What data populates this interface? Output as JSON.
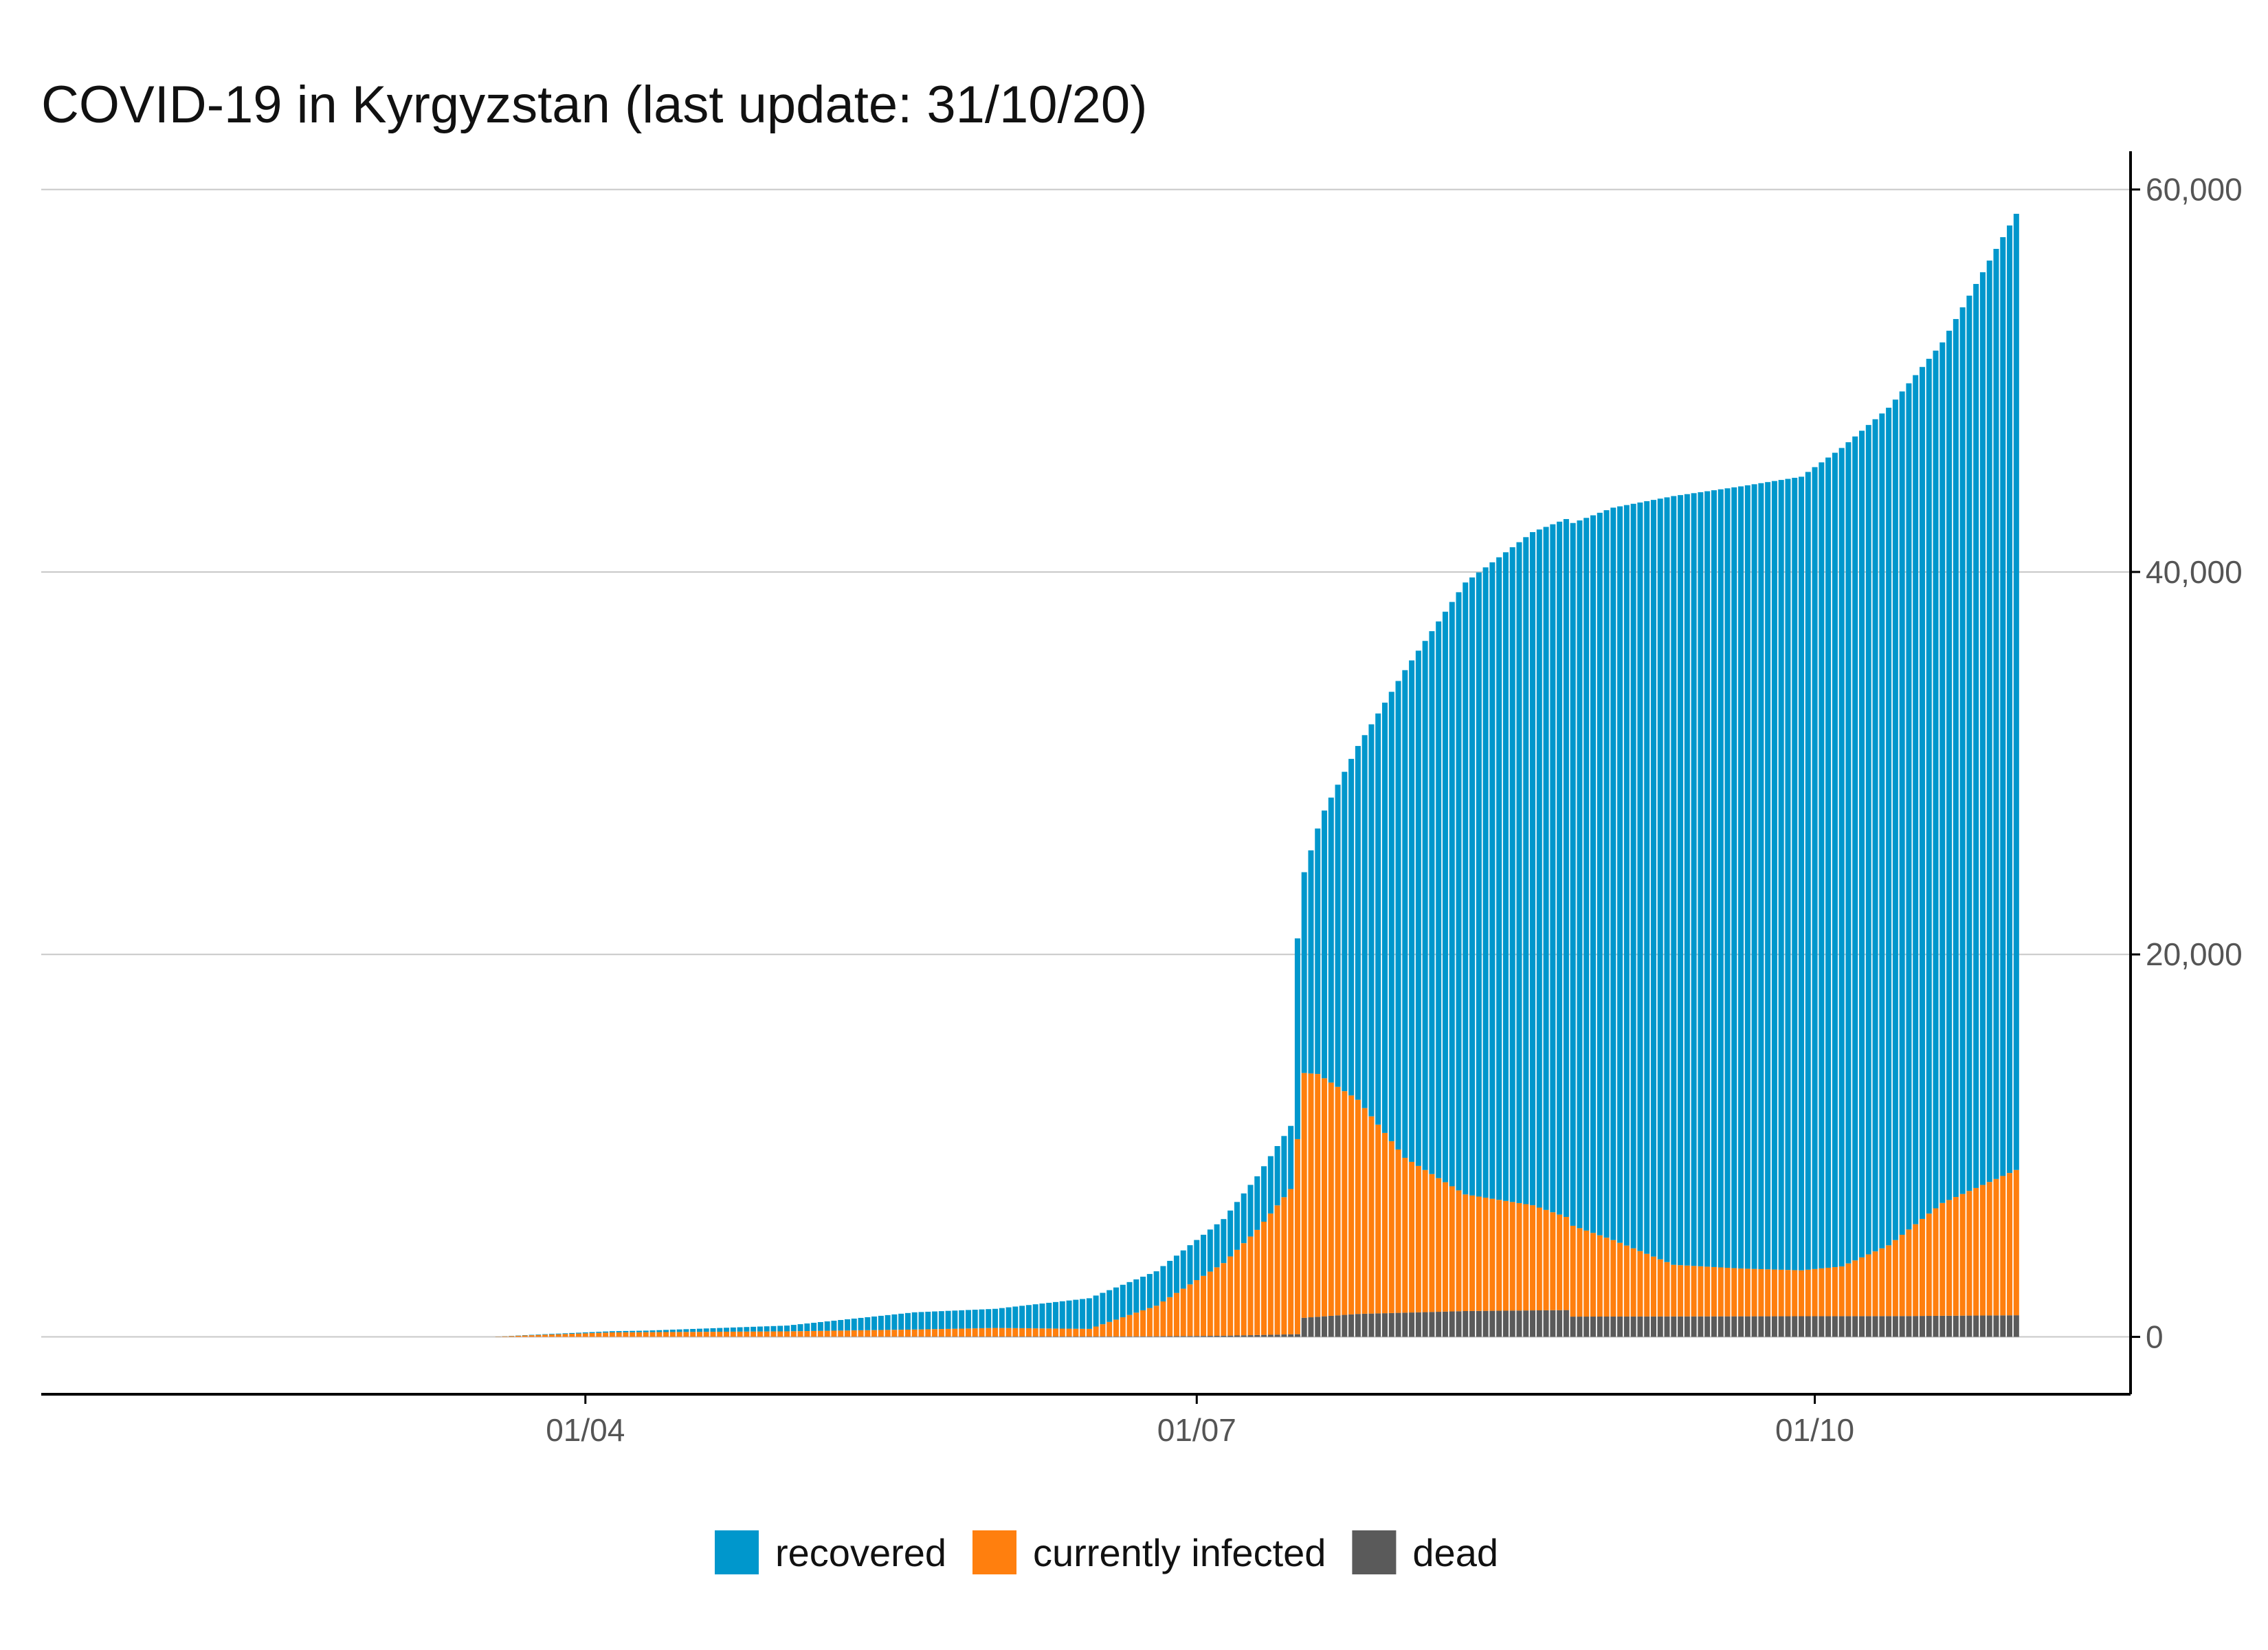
{
  "chart_data": {
    "type": "bar",
    "stacked": true,
    "title": "COVID-19 in Kyrgyzstan (last update: 31/10/20)",
    "xlabel": "",
    "ylabel": "",
    "x_axis": {
      "type": "date",
      "first_date": "2020-03-18",
      "last_date": "2020-10-31",
      "tick_labels": [
        {
          "date": "2020-04-01",
          "label": "01/04"
        },
        {
          "date": "2020-07-01",
          "label": "01/07"
        },
        {
          "date": "2020-10-01",
          "label": "01/10"
        }
      ],
      "xlim": [
        "2020-01-11",
        "2020-11-17"
      ]
    },
    "y_axis": {
      "position": "right",
      "ticks": [
        0,
        20000,
        40000,
        60000
      ],
      "tick_labels": [
        "0",
        "20,000",
        "40,000",
        "60,000"
      ],
      "ylim": [
        -3000,
        62000
      ]
    },
    "grid": "horizontal",
    "legend": {
      "position": "bottom",
      "order": [
        "recovered",
        "currently infected",
        "dead"
      ]
    },
    "series_colors": {
      "recovered": "#0097cc",
      "currently infected": "#ff7f0e",
      "dead": "#5a5a5a"
    },
    "series": [
      {
        "name": "dead",
        "key_dates": [
          "2020-03-18",
          "2020-04-15",
          "2020-05-15",
          "2020-06-15",
          "2020-06-25",
          "2020-07-05",
          "2020-07-16",
          "2020-07-17",
          "2020-07-25",
          "2020-08-10",
          "2020-08-25",
          "2020-08-26",
          "2020-10-15",
          "2020-10-31"
        ],
        "values": [
          0,
          8,
          14,
          20,
          30,
          60,
          140,
          1000,
          1200,
          1350,
          1400,
          1060,
          1090,
          1130
        ]
      },
      {
        "name": "currently infected",
        "key_dates": [
          "2020-03-18",
          "2020-03-25",
          "2020-04-05",
          "2020-04-15",
          "2020-05-01",
          "2020-05-20",
          "2020-06-01",
          "2020-06-15",
          "2020-06-25",
          "2020-07-05",
          "2020-07-10",
          "2020-07-15",
          "2020-07-17",
          "2020-07-19",
          "2020-07-25",
          "2020-08-01",
          "2020-08-10",
          "2020-08-20",
          "2020-09-01",
          "2020-09-10",
          "2020-09-20",
          "2020-09-29",
          "2020-10-05",
          "2020-10-12",
          "2020-10-20",
          "2020-10-31"
        ],
        "values": [
          0,
          100,
          230,
          250,
          280,
          370,
          450,
          400,
          1600,
          3800,
          5500,
          7600,
          12800,
          12700,
          11200,
          8100,
          6100,
          5500,
          4000,
          2700,
          2500,
          2400,
          2600,
          3700,
          5900,
          7600
        ]
      },
      {
        "name": "recovered",
        "key_dates": [
          "2020-03-18",
          "2020-04-10",
          "2020-05-01",
          "2020-05-20",
          "2020-06-01",
          "2020-06-15",
          "2020-06-20",
          "2020-06-25",
          "2020-07-05",
          "2020-07-10",
          "2020-07-15",
          "2020-07-16",
          "2020-07-17",
          "2020-07-20",
          "2020-07-25",
          "2020-08-01",
          "2020-08-10",
          "2020-08-20",
          "2020-09-01",
          "2020-09-10",
          "2020-09-20",
          "2020-09-29",
          "2020-10-05",
          "2020-10-12",
          "2020-10-20",
          "2020-10-31"
        ],
        "values": [
          0,
          80,
          300,
          900,
          1000,
          1600,
          1700,
          1800,
          2300,
          2800,
          3300,
          10500,
          10500,
          14000,
          18500,
          25500,
          32000,
          35200,
          38300,
          40200,
          40900,
          41500,
          42800,
          43800,
          45000,
          50000
        ]
      }
    ]
  },
  "legend_items": [
    {
      "label": "recovered",
      "color": "#0097cc",
      "icon": "recovered-swatch"
    },
    {
      "label": "currently infected",
      "color": "#ff7f0e",
      "icon": "currently-infected-swatch"
    },
    {
      "label": "dead",
      "color": "#5a5a5a",
      "icon": "dead-swatch"
    }
  ]
}
